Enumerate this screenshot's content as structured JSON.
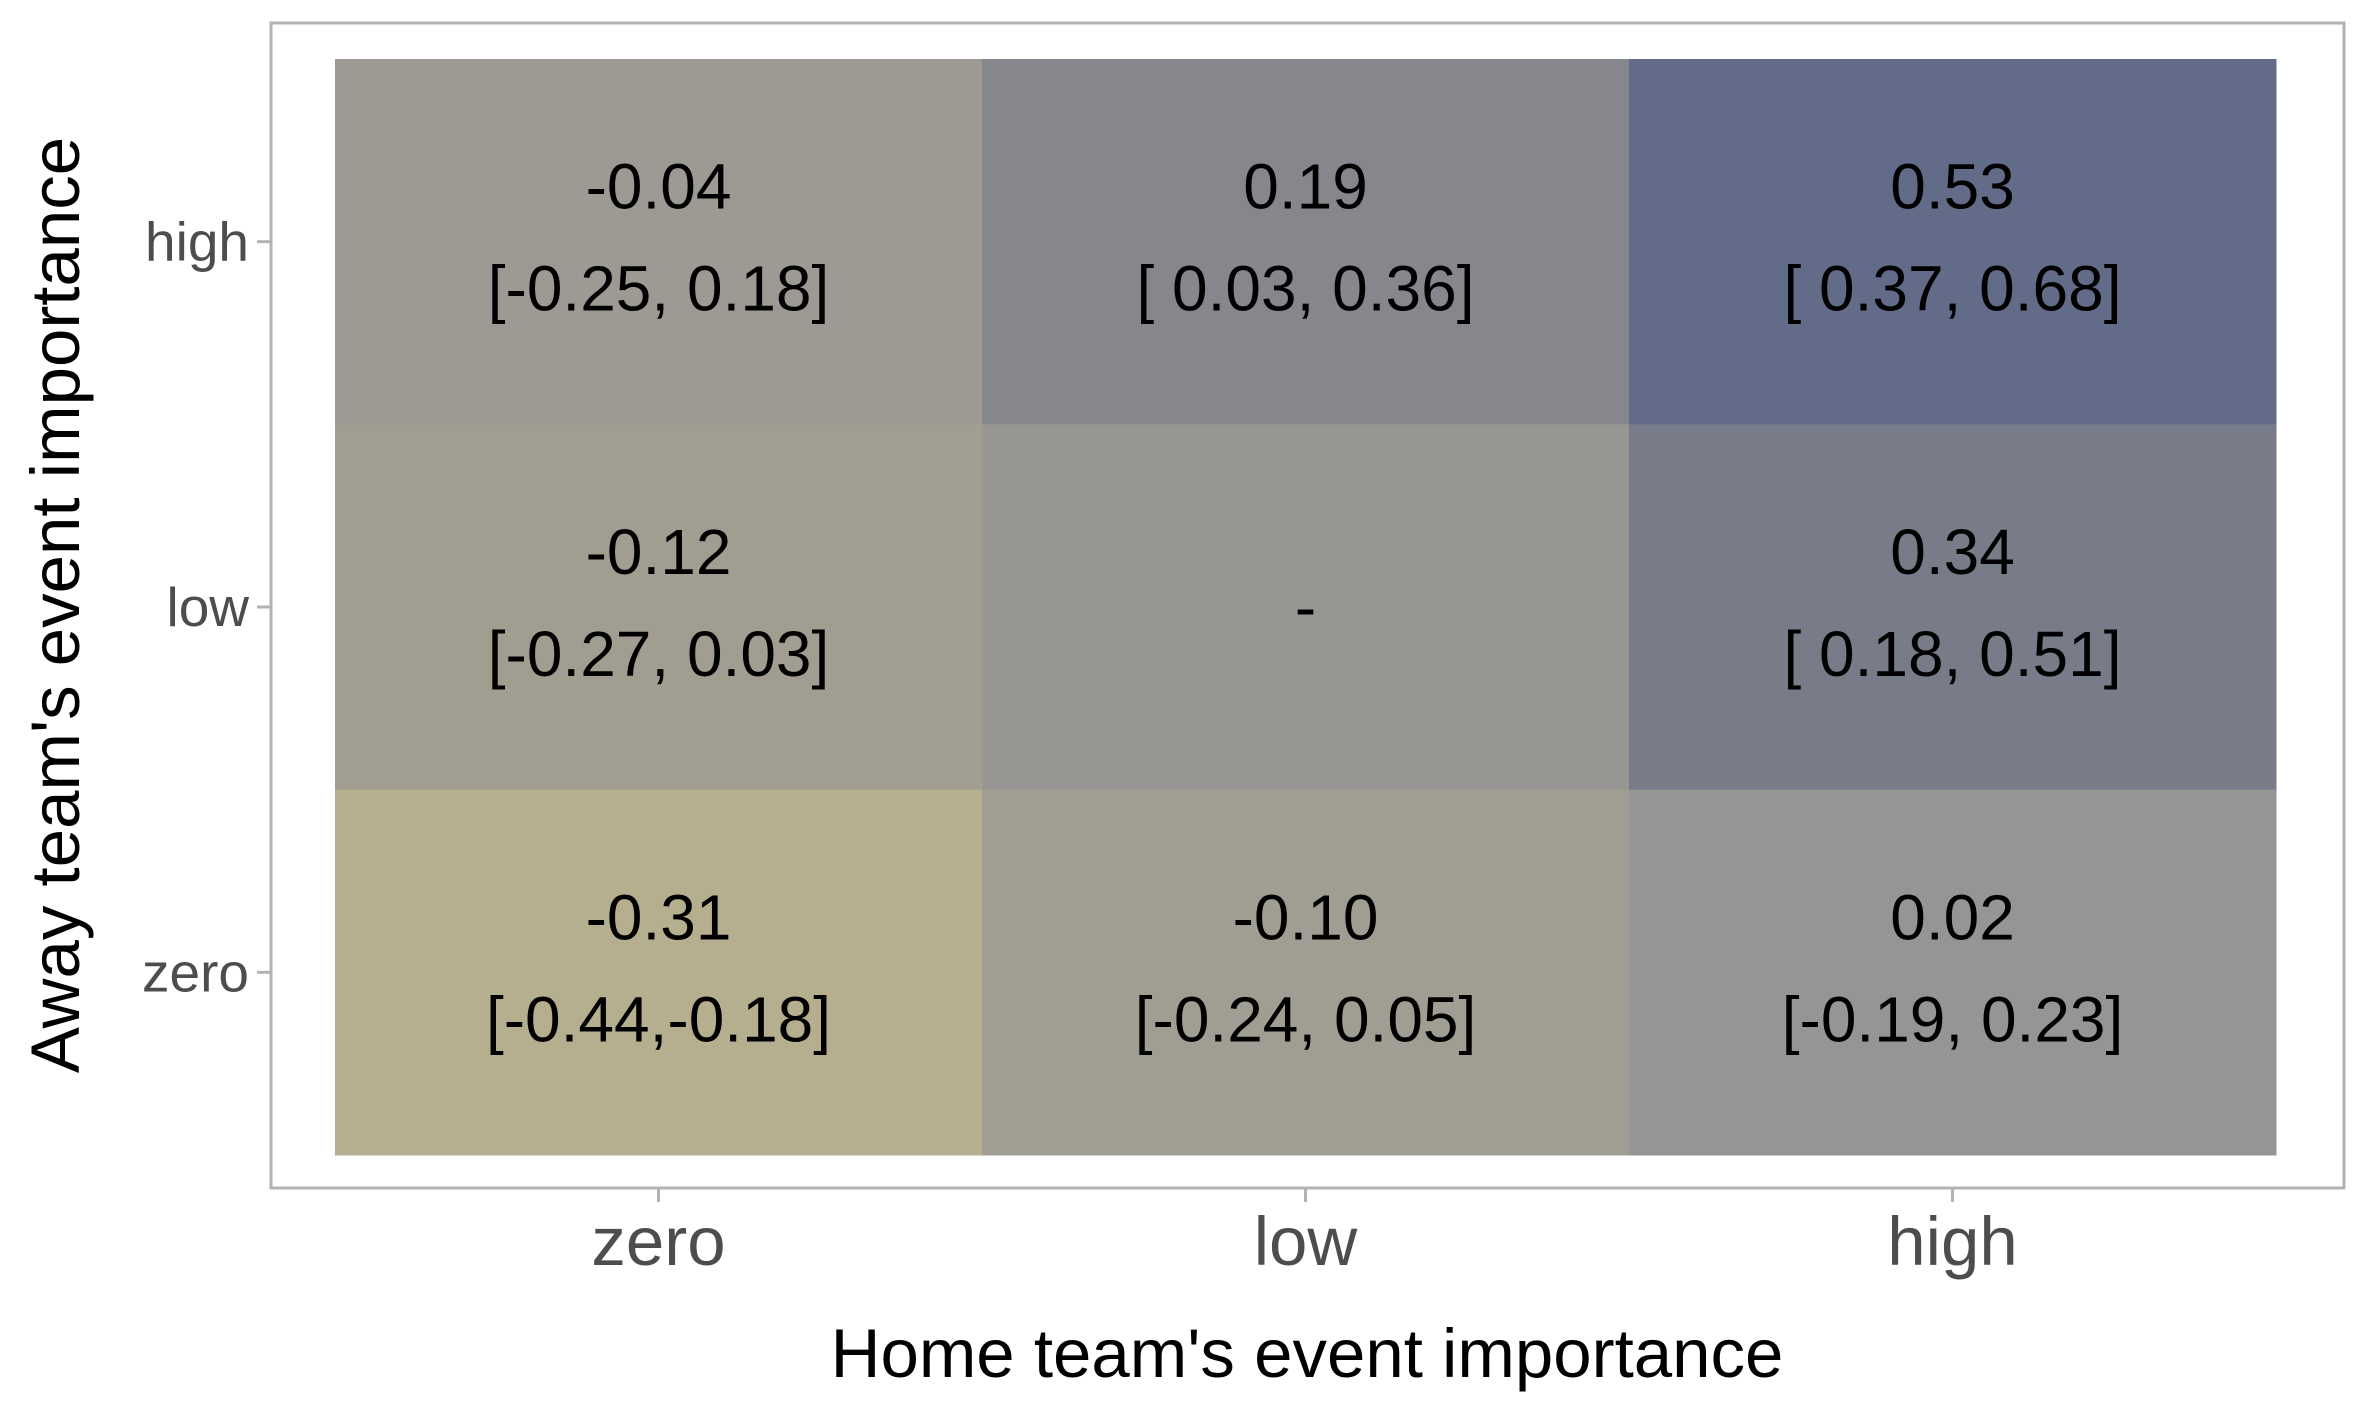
{
  "chart_data": {
    "type": "heatmap",
    "title": "",
    "xlabel": "Home team's event importance",
    "ylabel": "Away team's event importance",
    "x_categories": [
      "zero",
      "low",
      "high"
    ],
    "y_categories": [
      "zero",
      "low",
      "high"
    ],
    "grid": false,
    "legend": "none",
    "cells": [
      {
        "x": "zero",
        "y": "high",
        "value": -0.04,
        "value_label": "-0.04",
        "ci_label": "[-0.25, 0.18]",
        "ci": [
          -0.25,
          0.18
        ],
        "color": "#9c9a93"
      },
      {
        "x": "low",
        "y": "high",
        "value": 0.19,
        "value_label": "0.19",
        "ci_label": "[ 0.03, 0.36]",
        "ci": [
          0.03,
          0.36
        ],
        "color": "#86878d"
      },
      {
        "x": "high",
        "y": "high",
        "value": 0.53,
        "value_label": "0.53",
        "ci_label": "[ 0.37, 0.68]",
        "ci": [
          0.37,
          0.68
        ],
        "color": "#626c89"
      },
      {
        "x": "zero",
        "y": "low",
        "value": -0.12,
        "value_label": "-0.12",
        "ci_label": "[-0.27, 0.03]",
        "ci": [
          -0.27,
          0.03
        ],
        "color": "#a19e91"
      },
      {
        "x": "low",
        "y": "low",
        "value": null,
        "value_label": "-",
        "ci_label": "",
        "ci": null,
        "color": "#979693"
      },
      {
        "x": "high",
        "y": "low",
        "value": 0.34,
        "value_label": "0.34",
        "ci_label": "[ 0.18, 0.51]",
        "ci": [
          0.18,
          0.51
        ],
        "color": "#787c89"
      },
      {
        "x": "zero",
        "y": "zero",
        "value": -0.31,
        "value_label": "-0.31",
        "ci_label": "[-0.44,-0.18]",
        "ci": [
          -0.44,
          -0.18
        ],
        "color": "#b5ae8f"
      },
      {
        "x": "low",
        "y": "zero",
        "value": -0.1,
        "value_label": "-0.10",
        "ci_label": "[-0.24, 0.05]",
        "ci": [
          -0.24,
          0.05
        ],
        "color": "#a09e93"
      },
      {
        "x": "high",
        "y": "zero",
        "value": 0.02,
        "value_label": "0.02",
        "ci_label": "[-0.19, 0.23]",
        "ci": [
          -0.19,
          0.23
        ],
        "color": "#959593"
      }
    ]
  },
  "colors": {
    "panel_border": "#b3b3b3",
    "tick": "#b3b3b3",
    "tick_label": "#4d4d4d",
    "background": "#ffffff"
  }
}
